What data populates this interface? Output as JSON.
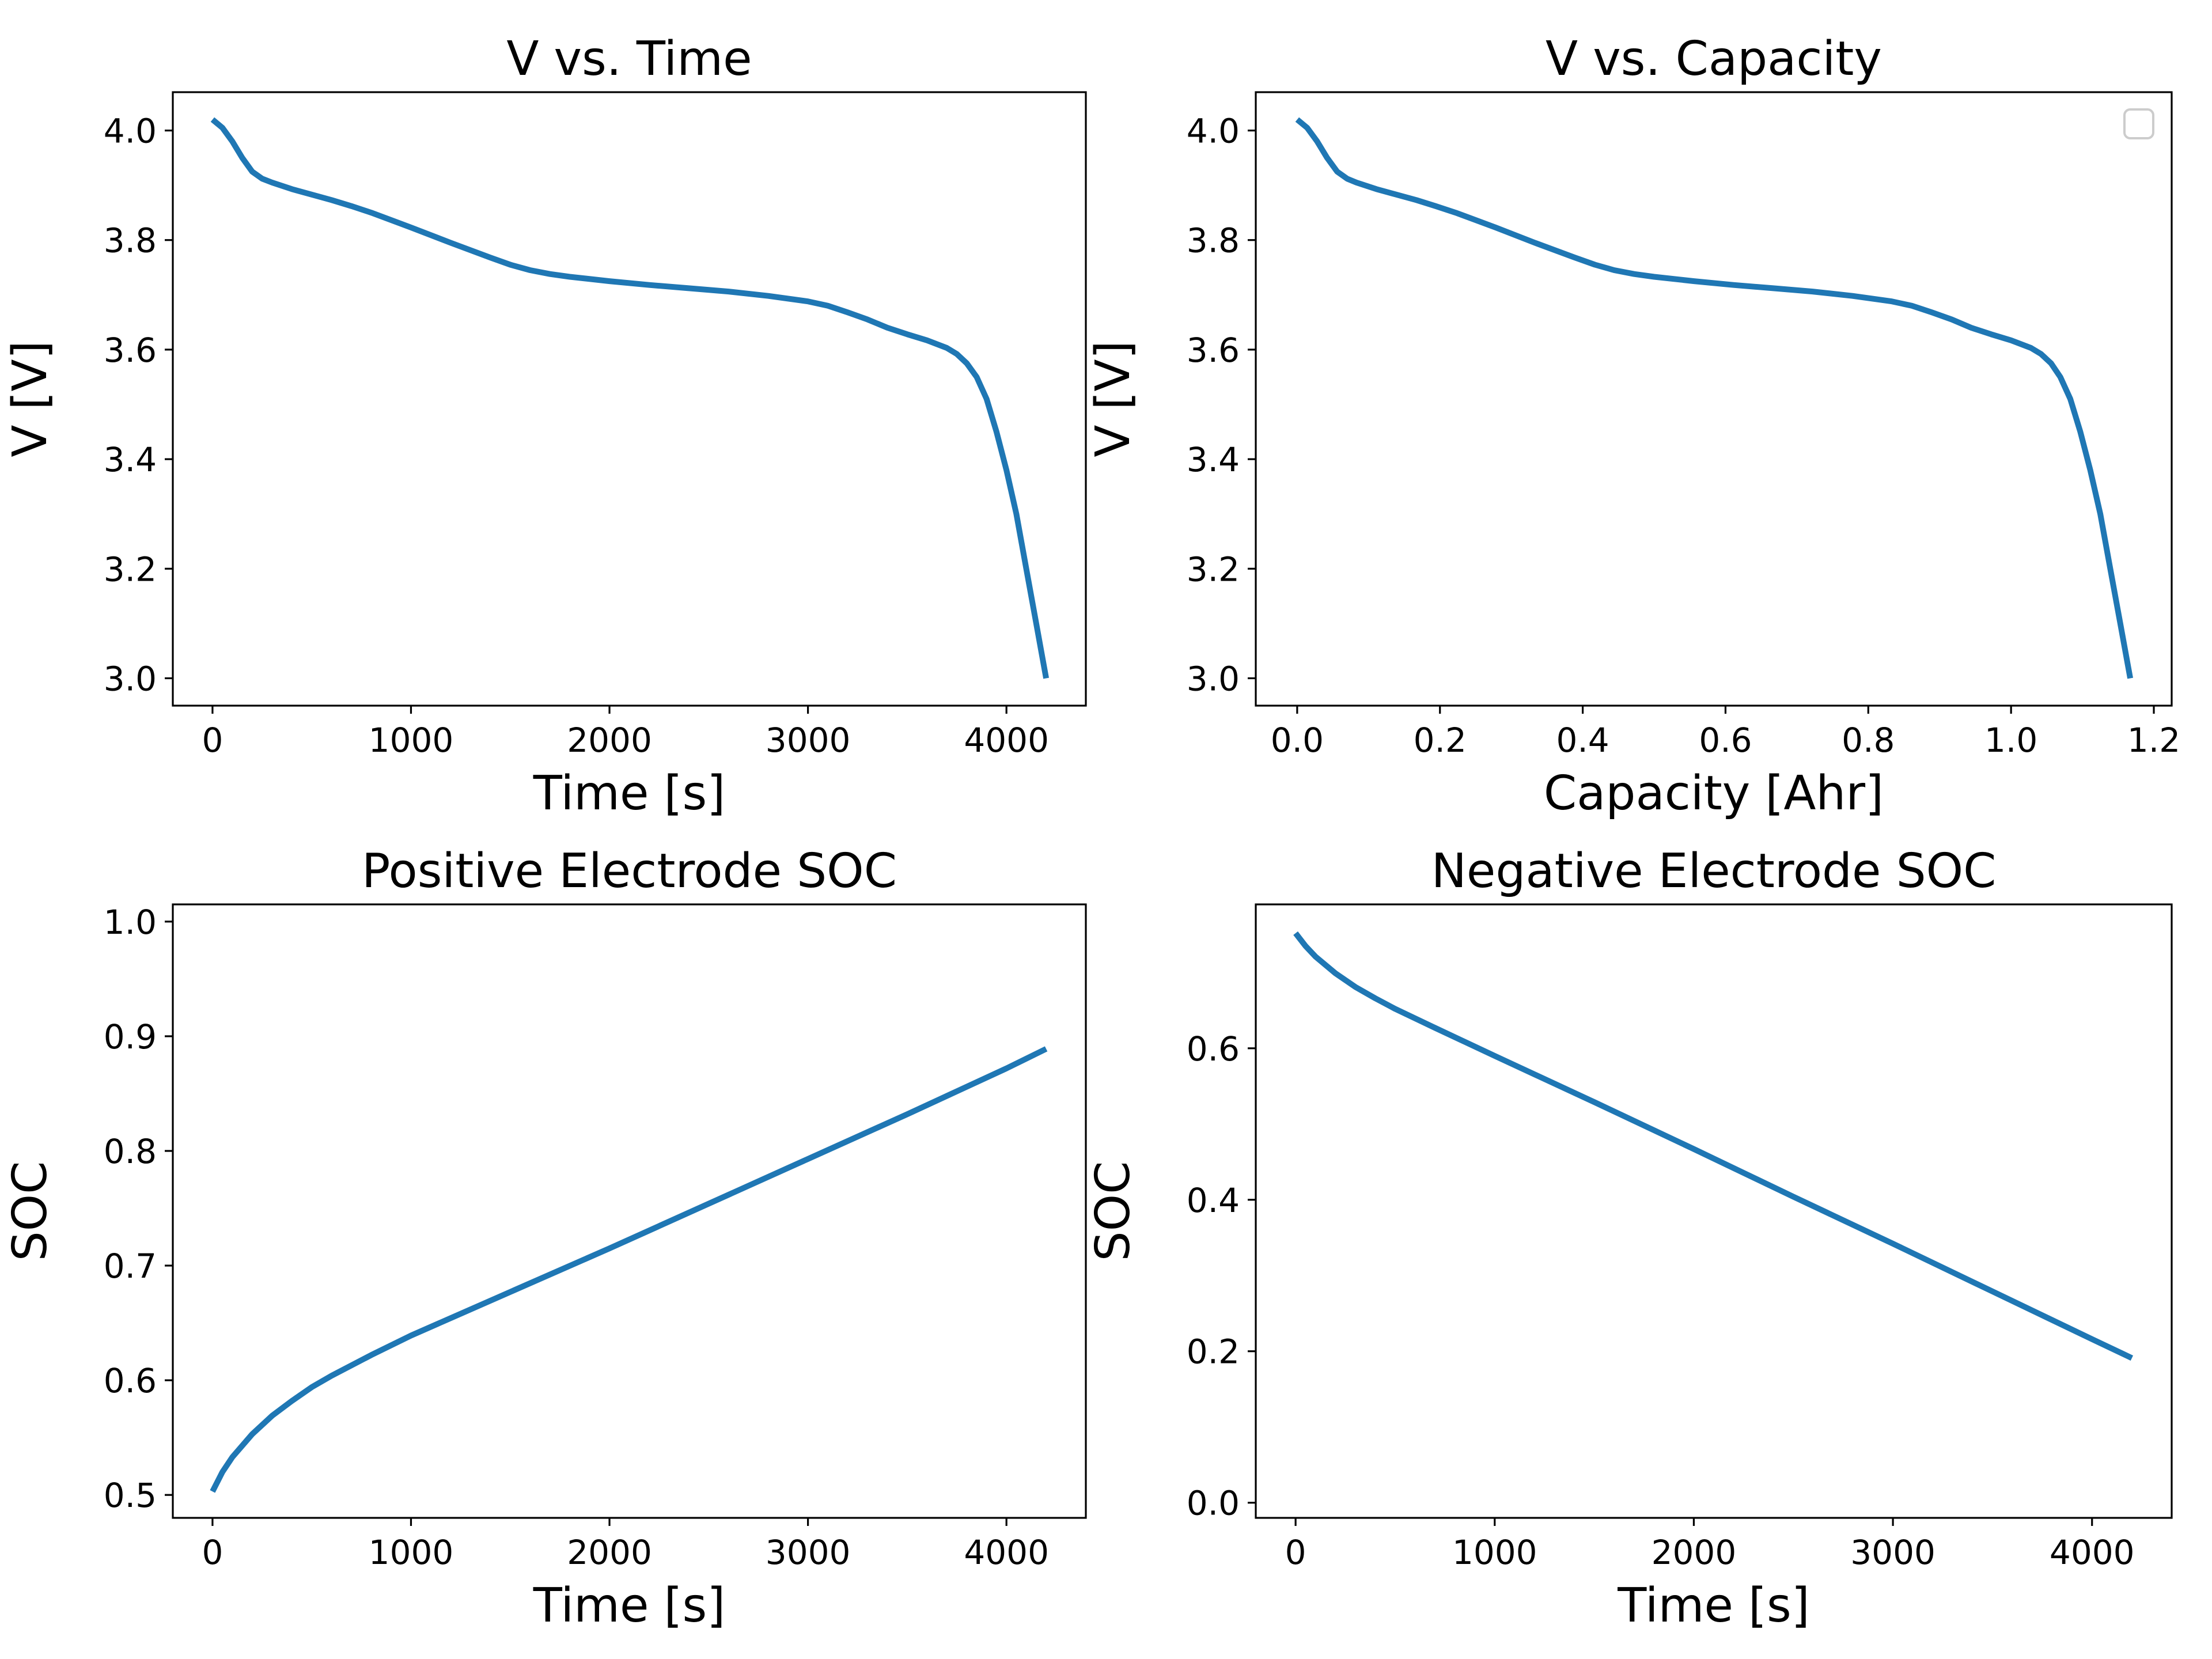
{
  "figure": {
    "line_color": "#1f77b4",
    "background": "#ffffff"
  },
  "chart_data": [
    {
      "type": "line",
      "title": "V vs. Time",
      "xlabel": "Time [s]",
      "ylabel": "V [V]",
      "xlim": [
        -200,
        4400
      ],
      "ylim": [
        2.95,
        4.07
      ],
      "xticks": [
        0,
        1000,
        2000,
        3000,
        4000
      ],
      "xtick_labels": [
        "0",
        "1000",
        "2000",
        "3000",
        "4000"
      ],
      "yticks": [
        3.0,
        3.2,
        3.4,
        3.6,
        3.8,
        4.0
      ],
      "ytick_labels": [
        "3.0",
        "3.2",
        "3.4",
        "3.6",
        "3.8",
        "4.0"
      ],
      "legend": "none",
      "grid": false,
      "series": [
        {
          "x": [
            0,
            50,
            100,
            150,
            200,
            250,
            300,
            400,
            500,
            600,
            700,
            800,
            1000,
            1200,
            1400,
            1500,
            1600,
            1700,
            1800,
            2000,
            2200,
            2400,
            2600,
            2800,
            3000,
            3100,
            3200,
            3300,
            3400,
            3500,
            3600,
            3700,
            3750,
            3800,
            3850,
            3900,
            3950,
            4000,
            4050,
            4100,
            4150,
            4200
          ],
          "y": [
            4.02,
            4.005,
            3.98,
            3.95,
            3.925,
            3.912,
            3.905,
            3.893,
            3.883,
            3.873,
            3.862,
            3.85,
            3.823,
            3.795,
            3.768,
            3.755,
            3.745,
            3.738,
            3.733,
            3.725,
            3.718,
            3.712,
            3.706,
            3.698,
            3.688,
            3.68,
            3.668,
            3.655,
            3.64,
            3.628,
            3.617,
            3.603,
            3.592,
            3.575,
            3.55,
            3.51,
            3.45,
            3.38,
            3.3,
            3.2,
            3.1,
            3.0
          ]
        }
      ]
    },
    {
      "type": "line",
      "title": "V vs. Capacity",
      "xlabel": "Capacity [Ahr]",
      "ylabel": "V [V]",
      "xlim": [
        -0.058,
        1.225
      ],
      "ylim": [
        2.95,
        4.07
      ],
      "xticks": [
        0.0,
        0.2,
        0.4,
        0.6,
        0.8,
        1.0,
        1.2
      ],
      "xtick_labels": [
        "0.0",
        "0.2",
        "0.4",
        "0.6",
        "0.8",
        "1.0",
        "1.2"
      ],
      "yticks": [
        3.0,
        3.2,
        3.4,
        3.6,
        3.8,
        4.0
      ],
      "ytick_labels": [
        "3.0",
        "3.2",
        "3.4",
        "3.6",
        "3.8",
        "4.0"
      ],
      "legend": "top-right (empty)",
      "grid": false,
      "series": [
        {
          "x": [
            0.0,
            0.014,
            0.028,
            0.042,
            0.056,
            0.07,
            0.083,
            0.111,
            0.139,
            0.167,
            0.194,
            0.222,
            0.278,
            0.333,
            0.389,
            0.417,
            0.444,
            0.472,
            0.5,
            0.556,
            0.611,
            0.667,
            0.722,
            0.778,
            0.833,
            0.861,
            0.889,
            0.917,
            0.944,
            0.972,
            1.0,
            1.028,
            1.042,
            1.056,
            1.069,
            1.083,
            1.097,
            1.111,
            1.125,
            1.139,
            1.153,
            1.167
          ],
          "y": [
            4.02,
            4.005,
            3.98,
            3.95,
            3.925,
            3.912,
            3.905,
            3.893,
            3.883,
            3.873,
            3.862,
            3.85,
            3.823,
            3.795,
            3.768,
            3.755,
            3.745,
            3.738,
            3.733,
            3.725,
            3.718,
            3.712,
            3.706,
            3.698,
            3.688,
            3.68,
            3.668,
            3.655,
            3.64,
            3.628,
            3.617,
            3.603,
            3.592,
            3.575,
            3.55,
            3.51,
            3.45,
            3.38,
            3.3,
            3.2,
            3.1,
            3.0
          ]
        }
      ]
    },
    {
      "type": "line",
      "title": "Positive Electrode SOC",
      "xlabel": "Time [s]",
      "ylabel": "SOC",
      "xlim": [
        -200,
        4400
      ],
      "ylim": [
        0.48,
        1.015
      ],
      "xticks": [
        0,
        1000,
        2000,
        3000,
        4000
      ],
      "xtick_labels": [
        "0",
        "1000",
        "2000",
        "3000",
        "4000"
      ],
      "yticks": [
        0.5,
        0.6,
        0.7,
        0.8,
        0.9,
        1.0
      ],
      "ytick_labels": [
        "0.5",
        "0.6",
        "0.7",
        "0.8",
        "0.9",
        "1.0"
      ],
      "legend": "none",
      "grid": false,
      "series": [
        {
          "x": [
            0,
            50,
            100,
            200,
            300,
            400,
            500,
            600,
            800,
            1000,
            1500,
            2000,
            2500,
            3000,
            3500,
            4000,
            4200
          ],
          "y": [
            0.503,
            0.52,
            0.533,
            0.553,
            0.569,
            0.582,
            0.594,
            0.604,
            0.622,
            0.639,
            0.677,
            0.715,
            0.754,
            0.793,
            0.832,
            0.872,
            0.889
          ]
        }
      ]
    },
    {
      "type": "line",
      "title": "Negative Electrode SOC",
      "xlabel": "Time [s]",
      "ylabel": "SOC",
      "xlim": [
        -200,
        4400
      ],
      "ylim": [
        -0.02,
        0.79
      ],
      "xticks": [
        0,
        1000,
        2000,
        3000,
        4000
      ],
      "xtick_labels": [
        "0",
        "1000",
        "2000",
        "3000",
        "4000"
      ],
      "yticks": [
        0.0,
        0.2,
        0.4,
        0.6
      ],
      "ytick_labels": [
        "0.0",
        "0.2",
        "0.4",
        "0.6"
      ],
      "legend": "none",
      "grid": false,
      "series": [
        {
          "x": [
            0,
            50,
            100,
            200,
            300,
            400,
            500,
            700,
            1000,
            1500,
            2000,
            2500,
            3000,
            3500,
            4000,
            4200
          ],
          "y": [
            0.752,
            0.735,
            0.721,
            0.699,
            0.681,
            0.666,
            0.652,
            0.627,
            0.59,
            0.529,
            0.467,
            0.404,
            0.342,
            0.279,
            0.216,
            0.191
          ]
        }
      ]
    }
  ]
}
